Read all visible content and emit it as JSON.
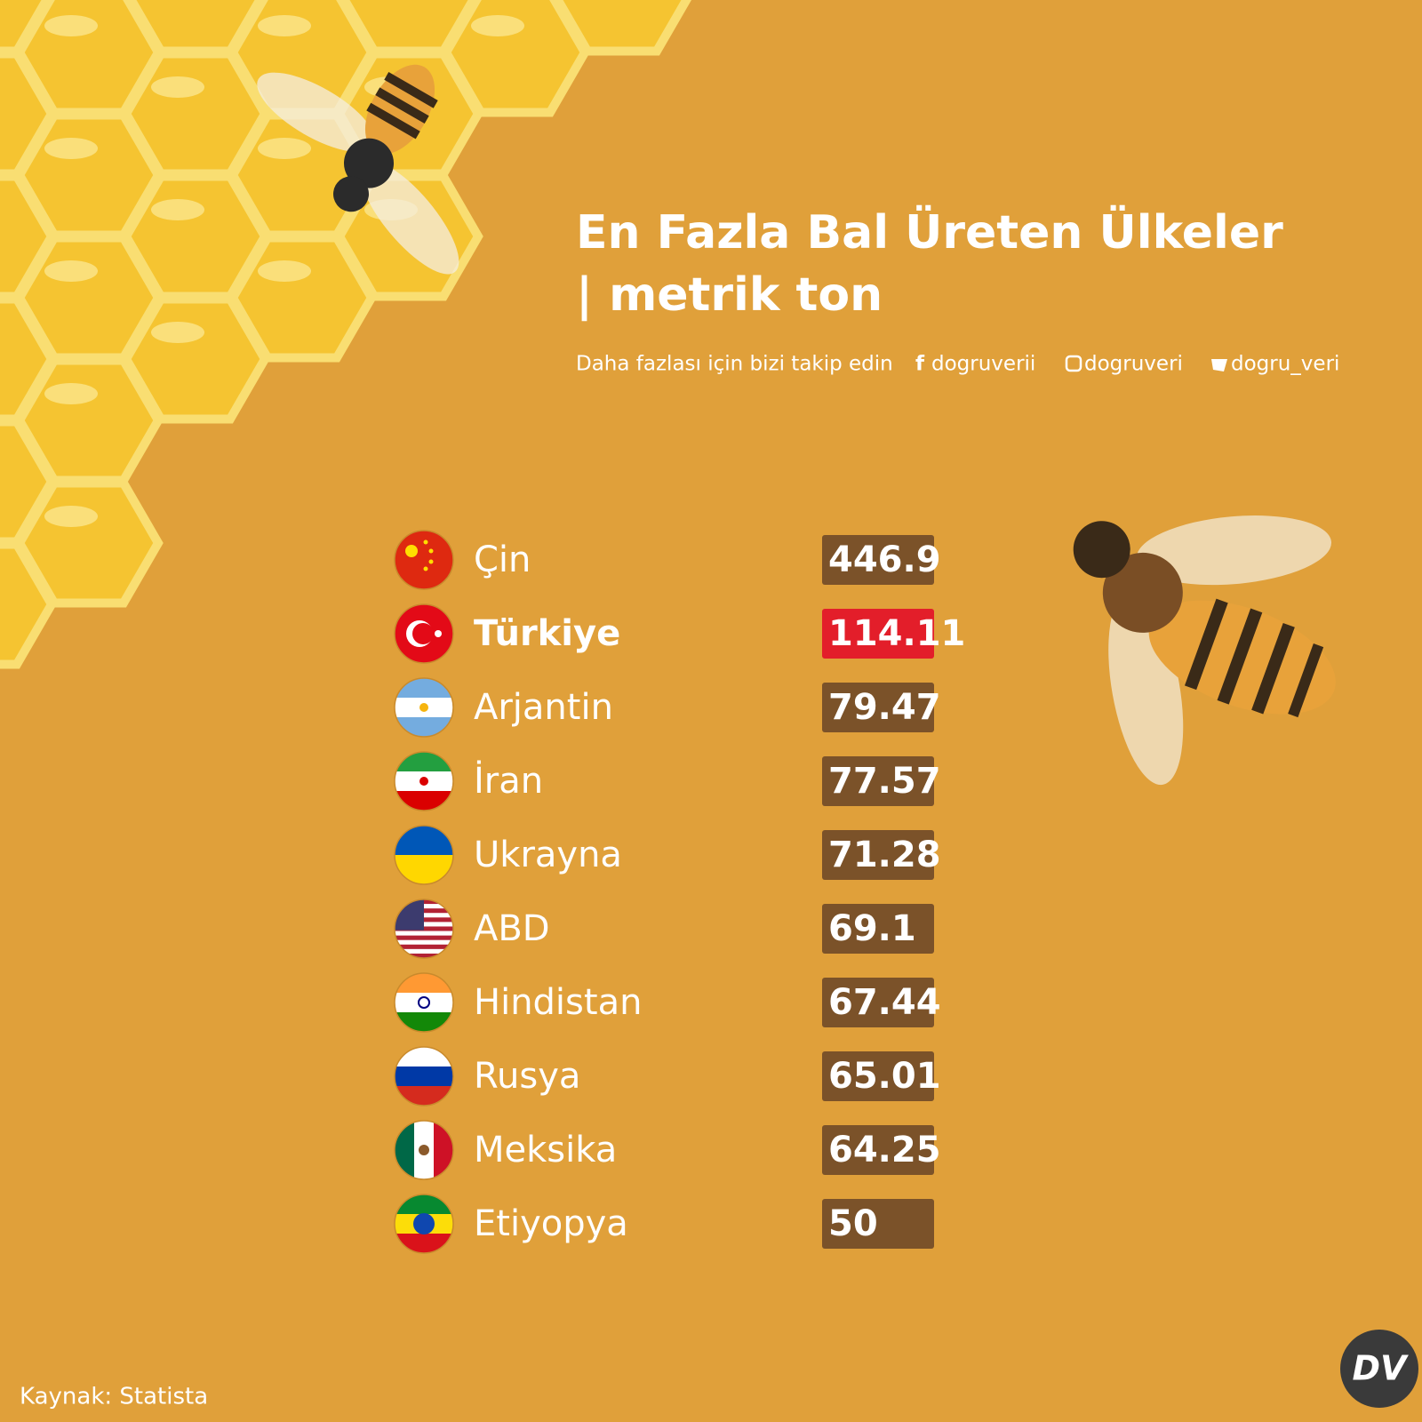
{
  "header": {
    "title_line1": "En Fazla Bal Üreten Ülkeler",
    "title_line2": "| metrik ton",
    "follow": "Daha fazlası için bizi takip edin",
    "facebook": "dogruverii",
    "instagram": "dogruveri",
    "twitter": "dogru_veri"
  },
  "rows": [
    {
      "country": "Çin",
      "value": 446.9
    },
    {
      "country": "Türkiye",
      "value": 114.11
    },
    {
      "country": "Arjantin",
      "value": 79.47
    },
    {
      "country": "İran",
      "value": 77.57
    },
    {
      "country": "Ukrayna",
      "value": 71.28
    },
    {
      "country": "ABD",
      "value": 69.1
    },
    {
      "country": "Hindistan",
      "value": 67.44
    },
    {
      "country": "Rusya",
      "value": 65.01
    },
    {
      "country": "Meksika",
      "value": 64.25
    },
    {
      "country": "Etiyopya",
      "value": 50
    }
  ],
  "source": "Kaynak: Statista",
  "logo": "DV"
}
